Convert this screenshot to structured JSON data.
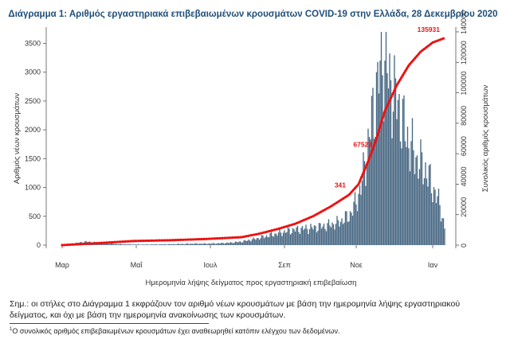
{
  "chart_data": {
    "type": "bar+line",
    "title": "Διάγραμμα 1: Αριθμός εργαστηριακά επιβεβαιωμένων κρουσμάτων COVID-19 στην Ελλάδα, 28 Δεκεμβρίου 2020",
    "xlabel": "Ημερομηνία λήψης δείγματος προς εργαστηριακή επιβεβαίωση",
    "ylabel_left": "Αριθμός νέων κρουσμάτων",
    "ylabel_right": "Συνολικός αριθμός κρουσμάτων",
    "x_tick_labels": [
      "Μαρ",
      "Μαΐ",
      "Ιουλ",
      "Σεπ",
      "Νοε",
      "Ιαν"
    ],
    "y_left_ticks": [
      0,
      500,
      1000,
      1500,
      2000,
      2500,
      3000,
      3500
    ],
    "y_right_ticks": [
      0,
      20000,
      40000,
      60000,
      80000,
      100000,
      120000,
      140000
    ],
    "ylim_left": [
      0,
      3700
    ],
    "ylim_right": [
      0,
      140000
    ],
    "bar_color": "#4a6a85",
    "line_color": "#ee1111",
    "annotations": [
      {
        "label": "135931",
        "series": "cumulative"
      },
      {
        "label": "67523",
        "series": "cumulative"
      },
      {
        "label": "341",
        "series": "cumulative"
      }
    ],
    "series": [
      {
        "name": "Νέα κρούσματα",
        "type": "bar",
        "keypoints": [
          [
            0,
            5
          ],
          [
            10,
            30
          ],
          [
            20,
            60
          ],
          [
            30,
            40
          ],
          [
            40,
            25
          ],
          [
            50,
            15
          ],
          [
            60,
            10
          ],
          [
            70,
            10
          ],
          [
            80,
            12
          ],
          [
            90,
            15
          ],
          [
            100,
            20
          ],
          [
            110,
            25
          ],
          [
            120,
            25
          ],
          [
            130,
            30
          ],
          [
            140,
            40
          ],
          [
            150,
            60
          ],
          [
            160,
            100
          ],
          [
            170,
            150
          ],
          [
            180,
            200
          ],
          [
            190,
            250
          ],
          [
            200,
            280
          ],
          [
            210,
            300
          ],
          [
            220,
            330
          ],
          [
            230,
            380
          ],
          [
            240,
            500
          ],
          [
            245,
            700
          ],
          [
            250,
            1000
          ],
          [
            255,
            1600
          ],
          [
            260,
            2300
          ],
          [
            265,
            2900
          ],
          [
            268,
            3300
          ],
          [
            272,
            3000
          ],
          [
            276,
            2700
          ],
          [
            280,
            2500
          ],
          [
            284,
            2200
          ],
          [
            288,
            1900
          ],
          [
            292,
            1700
          ],
          [
            296,
            1500
          ],
          [
            300,
            1400
          ],
          [
            304,
            1300
          ],
          [
            308,
            1100
          ],
          [
            312,
            900
          ],
          [
            316,
            700
          ],
          [
            318,
            500
          ],
          [
            320,
            300
          ]
        ]
      },
      {
        "name": "Συνολικά κρούσματα",
        "type": "line",
        "keypoints": [
          [
            0,
            0
          ],
          [
            30,
            1300
          ],
          [
            60,
            2700
          ],
          [
            90,
            3200
          ],
          [
            120,
            4000
          ],
          [
            150,
            5200
          ],
          [
            165,
            7500
          ],
          [
            180,
            10500
          ],
          [
            195,
            14000
          ],
          [
            210,
            19000
          ],
          [
            225,
            25500
          ],
          [
            240,
            33000
          ],
          [
            248,
            40000
          ],
          [
            256,
            55000
          ],
          [
            262,
            67523
          ],
          [
            270,
            88000
          ],
          [
            280,
            105000
          ],
          [
            290,
            118000
          ],
          [
            300,
            127000
          ],
          [
            310,
            133000
          ],
          [
            320,
            135931
          ]
        ]
      }
    ]
  },
  "notes": {
    "main": "Σημ.: οι στήλες στο Διάγραμμα 1 εκφράζουν τον αριθμό νέων κρουσμάτων με βάση την ημερομηνία λήψης εργαστηριακού δείγματος, και όχι με βάση την ημερομηνία ανακοίνωσης των κρουσμάτων.",
    "footnote_mark": "1",
    "footnote": "Ο συνολικός αριθμός επιβεβαιωμένων κρουσμάτων έχει αναθεωρηθεί κατόπιν ελέγχου των δεδομένων."
  }
}
